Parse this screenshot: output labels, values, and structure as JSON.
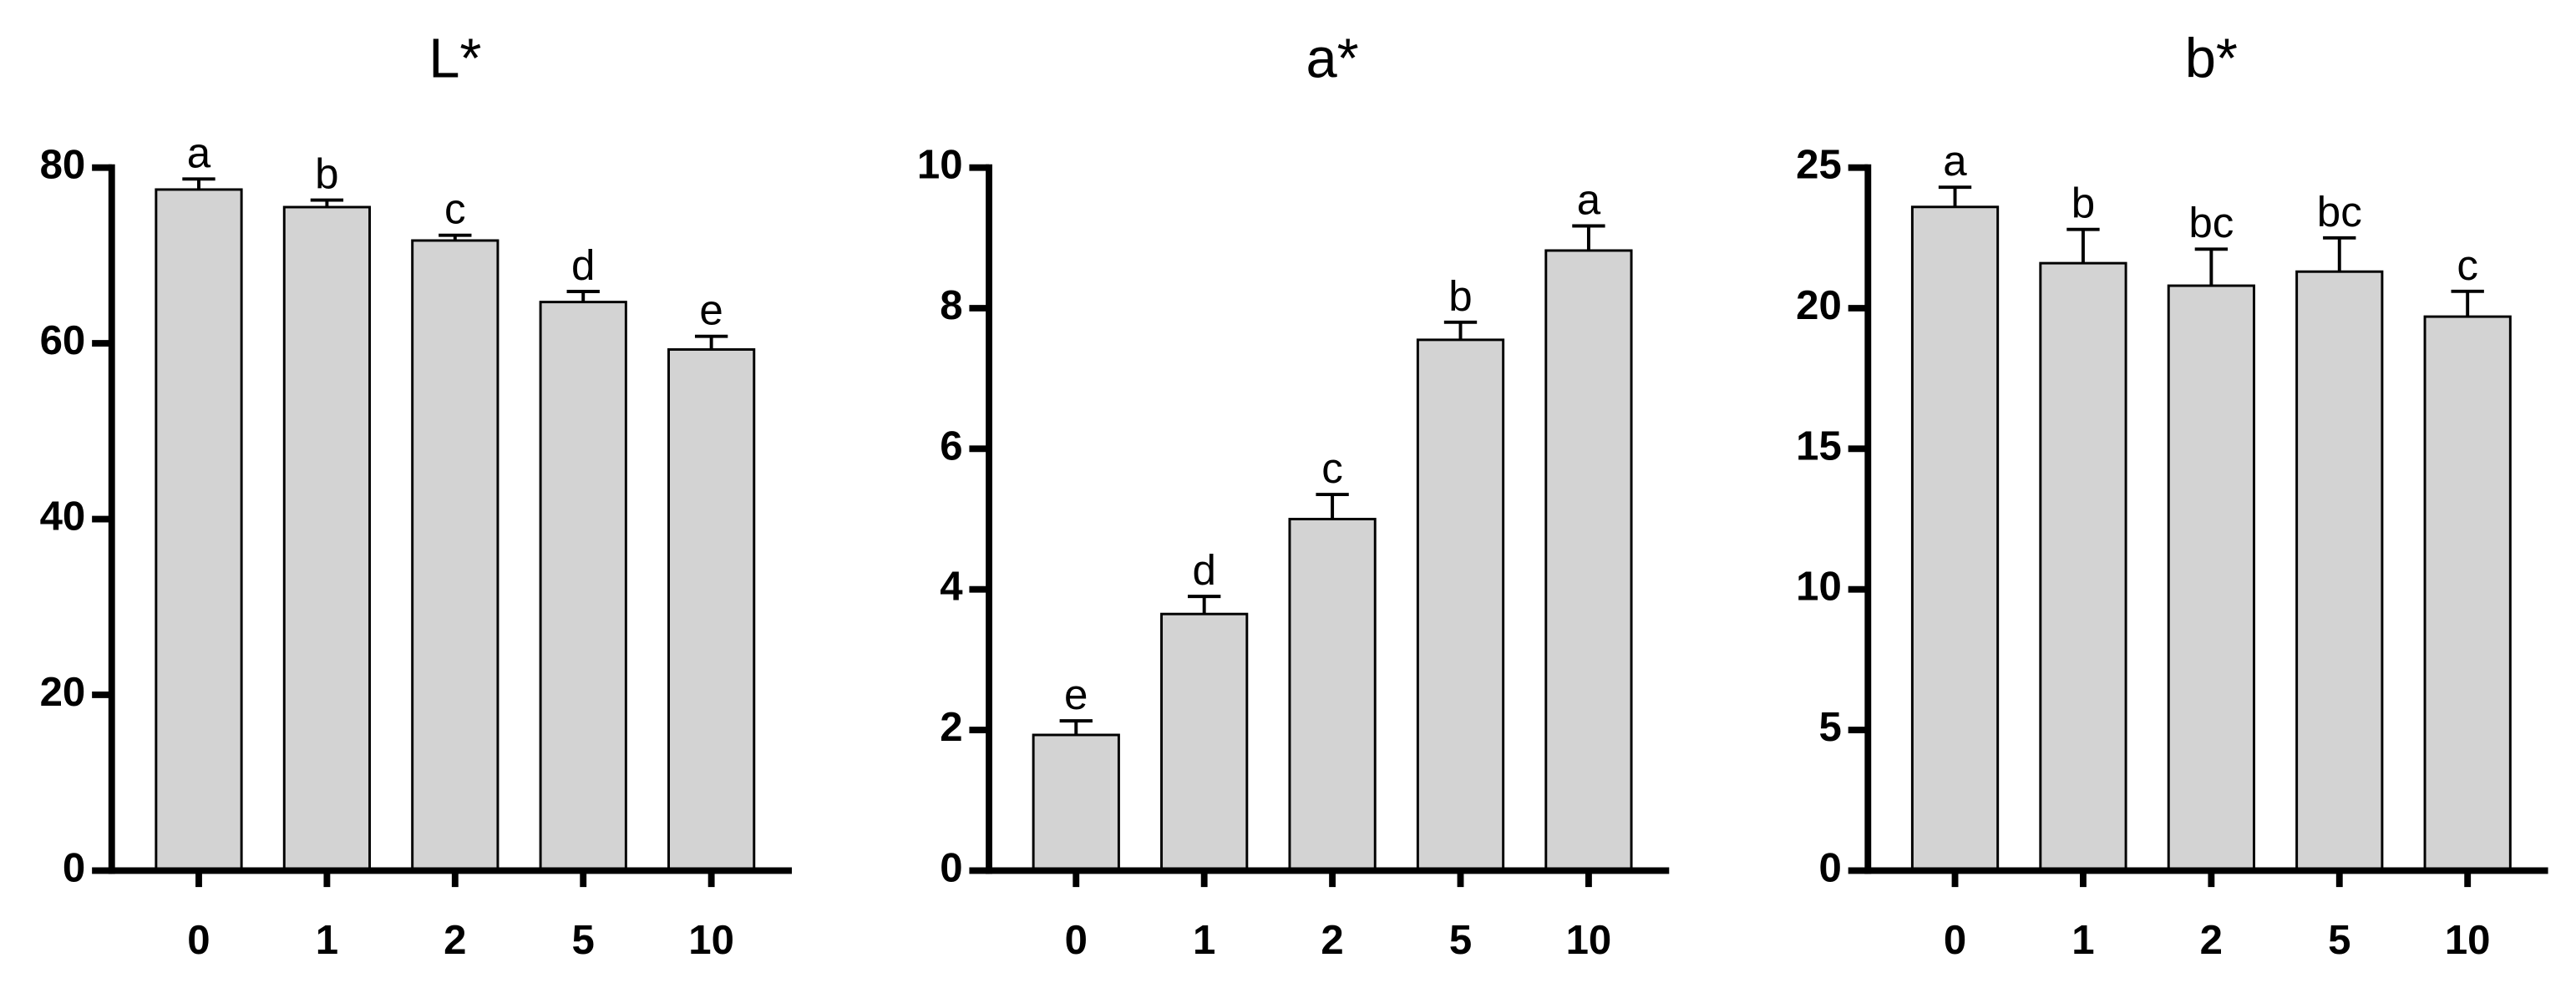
{
  "chart_data": [
    {
      "type": "bar",
      "title": "L*",
      "categories": [
        "0",
        "1",
        "2",
        "5",
        "10"
      ],
      "values": [
        77.5,
        75.5,
        71.7,
        64.7,
        59.3
      ],
      "errors": [
        1.2,
        0.8,
        0.6,
        1.2,
        1.5
      ],
      "annotations": [
        "a",
        "b",
        "c",
        "d",
        "e"
      ],
      "color": "#d3d3d3",
      "ylim": [
        0,
        80
      ],
      "yticks": [
        0,
        20,
        40,
        60,
        80
      ]
    },
    {
      "type": "bar",
      "title": "a*",
      "categories": [
        "0",
        "1",
        "2",
        "5",
        "10"
      ],
      "values": [
        1.93,
        3.65,
        5.0,
        7.55,
        8.82
      ],
      "errors": [
        0.2,
        0.25,
        0.35,
        0.25,
        0.35
      ],
      "annotations": [
        "e",
        "d",
        "c",
        "b",
        "a"
      ],
      "color": "#d3d3d3",
      "ylim": [
        0,
        10
      ],
      "yticks": [
        0,
        2,
        4,
        6,
        8,
        10
      ]
    },
    {
      "type": "bar",
      "title": "b*",
      "categories": [
        "0",
        "1",
        "2",
        "5",
        "10"
      ],
      "values": [
        23.6,
        21.6,
        20.8,
        21.3,
        19.7
      ],
      "errors": [
        0.7,
        1.2,
        1.3,
        1.2,
        0.9
      ],
      "annotations": [
        "a",
        "b",
        "bc",
        "bc",
        "c"
      ],
      "color": "#d3d3d3",
      "ylim": [
        0,
        25
      ],
      "yticks": [
        0,
        5,
        10,
        15,
        20,
        25
      ]
    }
  ]
}
